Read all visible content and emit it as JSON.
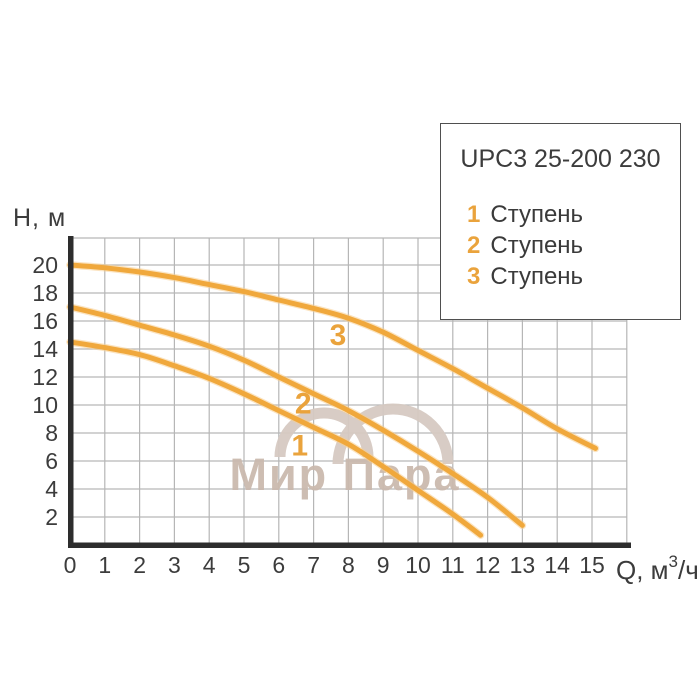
{
  "watermark": {
    "text": "Мир Пара"
  },
  "legend": {
    "title": "UPC3 25-200 230",
    "items": [
      {
        "num": "1",
        "label": "Ступень"
      },
      {
        "num": "2",
        "label": "Ступень"
      },
      {
        "num": "3",
        "label": "Ступень"
      }
    ]
  },
  "axis_titles": {
    "y": "H, м",
    "x_prefix": "Q, м",
    "x_sup": "3",
    "x_suffix": "/ч"
  },
  "colors": {
    "curve": "#F0A83C",
    "curve_halo": "#F7CE8E",
    "axis": "#2D2D2D",
    "grid": "#B6B6B6",
    "tick_text": "#3C3C3C",
    "orange_accent": "#EAA33C",
    "watermark_arc": "#D6CAC2",
    "watermark_text": "#CBBAAE",
    "background": "#FFFFFF"
  },
  "chart_data": {
    "type": "line",
    "title": "UPC3 25-200 230",
    "xlabel": "Q, м³/ч",
    "ylabel": "H, м",
    "xlim": [
      0,
      16.2
    ],
    "ylim": [
      0,
      21.9
    ],
    "grid": true,
    "legend_position": "top-right overlay box",
    "x_ticks": [
      0,
      1,
      2,
      3,
      4,
      5,
      6,
      7,
      8,
      9,
      10,
      11,
      12,
      13,
      14,
      15
    ],
    "y_ticks": [
      2,
      4,
      6,
      8,
      10,
      12,
      14,
      16,
      18,
      20
    ],
    "series": [
      {
        "name": "1 Ступень",
        "label": "1",
        "label_at": [
          6.6,
          7.1
        ],
        "points": [
          [
            0,
            14.5
          ],
          [
            1,
            14.1
          ],
          [
            2,
            13.6
          ],
          [
            3,
            12.8
          ],
          [
            4,
            11.9
          ],
          [
            5,
            10.8
          ],
          [
            6,
            9.6
          ],
          [
            7,
            8.4
          ],
          [
            8,
            7.2
          ],
          [
            9,
            5.6
          ],
          [
            10,
            3.9
          ],
          [
            11,
            2.2
          ],
          [
            11.8,
            0.7
          ]
        ]
      },
      {
        "name": "2 Ступень",
        "label": "2",
        "label_at": [
          6.7,
          10.1
        ],
        "points": [
          [
            0,
            17.0
          ],
          [
            1,
            16.4
          ],
          [
            2,
            15.7
          ],
          [
            3,
            15.0
          ],
          [
            4,
            14.2
          ],
          [
            5,
            13.2
          ],
          [
            6,
            12.0
          ],
          [
            7,
            10.8
          ],
          [
            8,
            9.6
          ],
          [
            9,
            8.2
          ],
          [
            10,
            6.7
          ],
          [
            11,
            5.1
          ],
          [
            12,
            3.4
          ],
          [
            13,
            1.4
          ]
        ]
      },
      {
        "name": "3 Ступень",
        "label": "3",
        "label_at": [
          7.7,
          15.0
        ],
        "points": [
          [
            0,
            20.0
          ],
          [
            1,
            19.8
          ],
          [
            2,
            19.5
          ],
          [
            3,
            19.1
          ],
          [
            4,
            18.6
          ],
          [
            5,
            18.1
          ],
          [
            6,
            17.5
          ],
          [
            7,
            16.9
          ],
          [
            8,
            16.2
          ],
          [
            9,
            15.2
          ],
          [
            10,
            13.9
          ],
          [
            11,
            12.6
          ],
          [
            12,
            11.2
          ],
          [
            13,
            9.8
          ],
          [
            14,
            8.3
          ],
          [
            15.1,
            6.9
          ]
        ]
      }
    ]
  }
}
